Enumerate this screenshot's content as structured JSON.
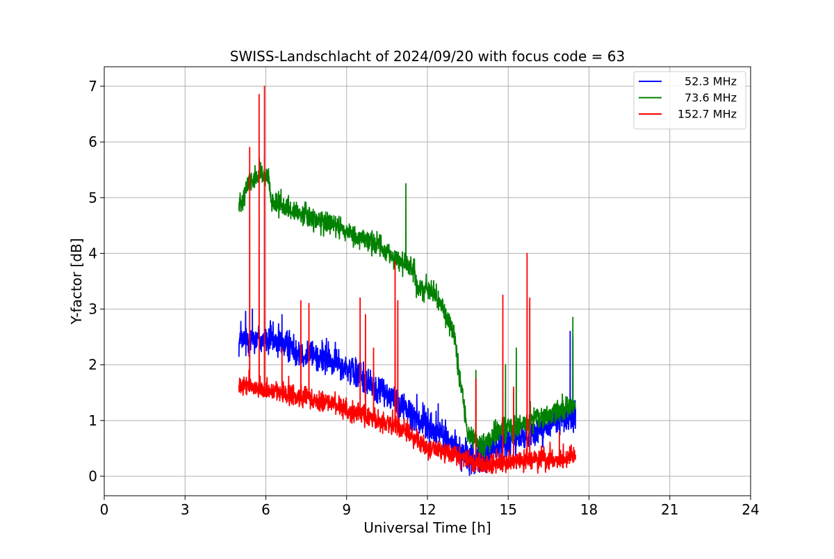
{
  "chart_data": {
    "type": "line",
    "title": "SWISS-Landschlacht of 2024/09/20 with focus code = 63",
    "xlabel": "Universal Time [h]",
    "ylabel": "Y-factor [dB]",
    "xlim": [
      0,
      24
    ],
    "ylim": [
      -0.35,
      7.35
    ],
    "xticks": [
      0,
      3,
      6,
      9,
      12,
      15,
      18,
      21,
      24
    ],
    "xtick_labels": [
      "0",
      "3",
      "6",
      "9",
      "12",
      "15",
      "18",
      "21",
      "24"
    ],
    "yticks": [
      0,
      1,
      2,
      3,
      4,
      5,
      6,
      7
    ],
    "ytick_labels": [
      "0",
      "1",
      "2",
      "3",
      "4",
      "5",
      "6",
      "7"
    ],
    "grid": true,
    "legend_position": "top-right",
    "x_range_data": [
      5.0,
      17.5
    ],
    "series": [
      {
        "name": "52.3 MHz",
        "color": "#0000ff",
        "trend": [
          [
            5.0,
            2.4
          ],
          [
            5.5,
            2.5
          ],
          [
            6.0,
            2.45
          ],
          [
            6.5,
            2.4
          ],
          [
            7.0,
            2.3
          ],
          [
            7.5,
            2.2
          ],
          [
            8.0,
            2.15
          ],
          [
            8.5,
            2.05
          ],
          [
            9.0,
            1.95
          ],
          [
            9.5,
            1.8
          ],
          [
            10.0,
            1.6
          ],
          [
            10.5,
            1.5
          ],
          [
            11.0,
            1.3
          ],
          [
            11.5,
            1.1
          ],
          [
            12.0,
            0.9
          ],
          [
            12.5,
            0.75
          ],
          [
            13.0,
            0.55
          ],
          [
            13.5,
            0.3
          ],
          [
            14.0,
            0.35
          ],
          [
            14.5,
            0.5
          ],
          [
            15.0,
            0.6
          ],
          [
            15.5,
            0.7
          ],
          [
            16.0,
            0.8
          ],
          [
            16.5,
            0.9
          ],
          [
            17.0,
            1.05
          ],
          [
            17.5,
            1.1
          ]
        ],
        "noise": 0.14,
        "spikes": [
          [
            5.5,
            3.0
          ],
          [
            6.6,
            2.9
          ],
          [
            12.4,
            1.3
          ],
          [
            17.3,
            2.6
          ],
          [
            17.4,
            2.5
          ]
        ]
      },
      {
        "name": "73.6 MHz",
        "color": "#008000",
        "trend": [
          [
            5.0,
            4.85
          ],
          [
            5.3,
            5.2
          ],
          [
            5.7,
            5.4
          ],
          [
            6.1,
            5.35
          ],
          [
            6.2,
            4.9
          ],
          [
            7.0,
            4.75
          ],
          [
            8.0,
            4.6
          ],
          [
            9.0,
            4.4
          ],
          [
            10.0,
            4.2
          ],
          [
            11.0,
            3.85
          ],
          [
            11.5,
            3.7
          ],
          [
            11.6,
            3.4
          ],
          [
            12.0,
            3.35
          ],
          [
            12.5,
            3.1
          ],
          [
            13.0,
            2.5
          ],
          [
            13.2,
            1.8
          ],
          [
            13.5,
            0.8
          ],
          [
            14.0,
            0.5
          ],
          [
            14.5,
            0.75
          ],
          [
            15.0,
            0.85
          ],
          [
            15.5,
            0.9
          ],
          [
            16.0,
            1.0
          ],
          [
            16.5,
            1.1
          ],
          [
            17.0,
            1.2
          ],
          [
            17.5,
            1.25
          ]
        ],
        "noise": 0.1,
        "spikes": [
          [
            11.2,
            5.25
          ],
          [
            13.8,
            1.9
          ],
          [
            14.9,
            2.0
          ],
          [
            15.3,
            2.3
          ],
          [
            17.4,
            2.85
          ]
        ]
      },
      {
        "name": "152.7 MHz",
        "color": "#ff0000",
        "trend": [
          [
            5.0,
            1.6
          ],
          [
            5.5,
            1.6
          ],
          [
            6.0,
            1.55
          ],
          [
            6.5,
            1.5
          ],
          [
            7.0,
            1.45
          ],
          [
            7.5,
            1.4
          ],
          [
            8.0,
            1.35
          ],
          [
            8.5,
            1.3
          ],
          [
            9.0,
            1.2
          ],
          [
            9.5,
            1.1
          ],
          [
            10.0,
            1.0
          ],
          [
            10.5,
            0.95
          ],
          [
            11.0,
            0.85
          ],
          [
            11.5,
            0.7
          ],
          [
            12.0,
            0.5
          ],
          [
            12.5,
            0.45
          ],
          [
            13.0,
            0.4
          ],
          [
            13.5,
            0.3
          ],
          [
            14.0,
            0.2
          ],
          [
            14.5,
            0.2
          ],
          [
            15.0,
            0.25
          ],
          [
            15.5,
            0.3
          ],
          [
            16.0,
            0.3
          ],
          [
            16.5,
            0.3
          ],
          [
            17.0,
            0.3
          ],
          [
            17.5,
            0.35
          ]
        ],
        "noise": 0.09,
        "spikes": [
          [
            5.4,
            5.9
          ],
          [
            5.75,
            6.85
          ],
          [
            5.95,
            7.0
          ],
          [
            6.6,
            2.3
          ],
          [
            7.3,
            3.15
          ],
          [
            7.6,
            3.1
          ],
          [
            9.5,
            3.2
          ],
          [
            9.7,
            2.9
          ],
          [
            10.0,
            2.3
          ],
          [
            10.8,
            3.85
          ],
          [
            10.9,
            3.15
          ],
          [
            13.8,
            1.75
          ],
          [
            14.8,
            3.25
          ],
          [
            15.2,
            1.6
          ],
          [
            15.7,
            4.0
          ],
          [
            15.8,
            3.2
          ],
          [
            16.9,
            0.8
          ]
        ]
      }
    ]
  }
}
